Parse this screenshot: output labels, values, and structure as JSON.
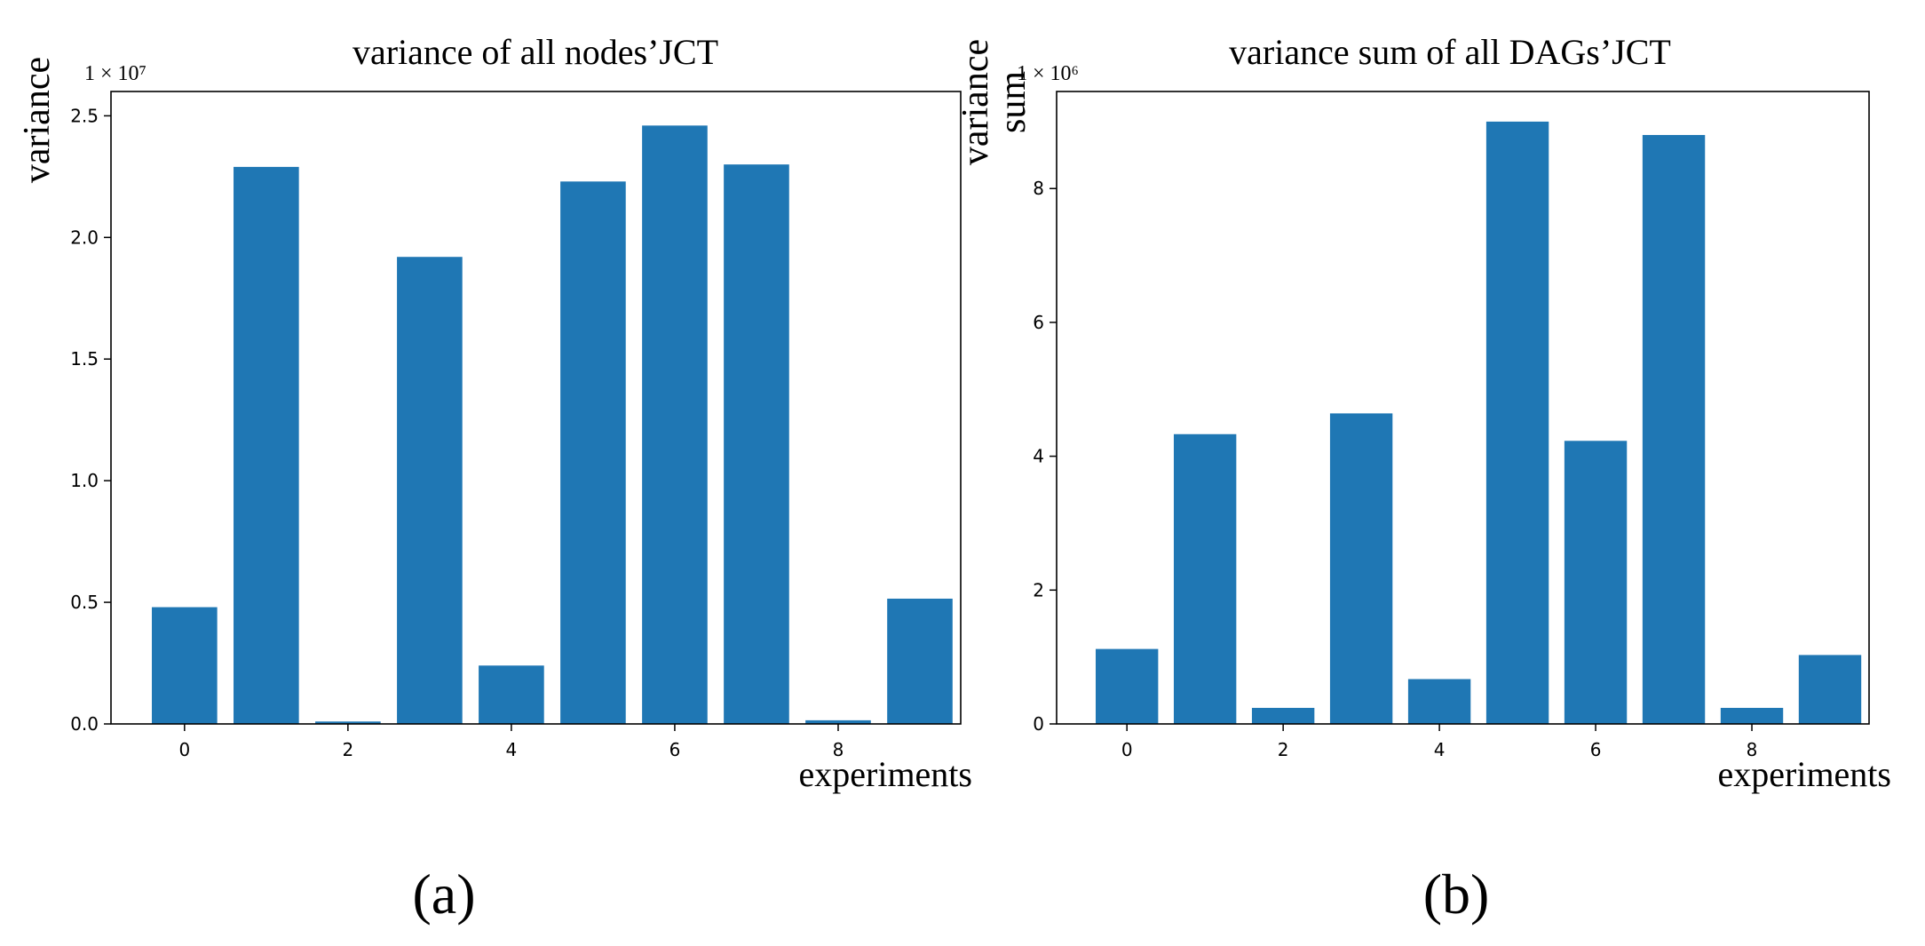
{
  "figure": {
    "colors": {
      "bar": "#1f77b4",
      "axis": "#000000",
      "background": "#ffffff"
    }
  },
  "chart_data": [
    {
      "type": "bar",
      "panel_label": "(a)",
      "title": "variance of all nodes’JCT",
      "xlabel": "experiments",
      "ylabel": "variance",
      "offset_text": "1 × 10⁷",
      "scale": 10000000,
      "categories": [
        0,
        1,
        2,
        3,
        4,
        5,
        6,
        7,
        8,
        9
      ],
      "values": [
        4800000,
        22900000,
        100000,
        19200000,
        2400000,
        22300000,
        24600000,
        23000000,
        150000,
        5150000
      ],
      "xlim": [
        -0.9,
        9.5
      ],
      "ylim": [
        0,
        2.6
      ],
      "xticks": [
        0,
        2,
        4,
        6,
        8
      ],
      "xtick_labels": [
        "0",
        "2",
        "4",
        "6",
        "8"
      ],
      "yticks": [
        0,
        0.5,
        1.0,
        1.5,
        2.0,
        2.5
      ],
      "ytick_labels": [
        "0.0",
        "0.5",
        "1.0",
        "1.5",
        "2.0",
        "2.5"
      ],
      "grid": false
    },
    {
      "type": "bar",
      "panel_label": "(b)",
      "title": "variance sum of all DAGs’JCT",
      "xlabel": "experiments",
      "ylabel": [
        "variance",
        "sum"
      ],
      "offset_text": "1 × 10⁶",
      "scale": 1000000,
      "categories": [
        0,
        1,
        2,
        3,
        4,
        5,
        6,
        7,
        8,
        9
      ],
      "values": [
        1120000,
        4330000,
        240000,
        4640000,
        670000,
        9000000,
        4230000,
        8800000,
        240000,
        1030000
      ],
      "xlim": [
        -0.9,
        9.5
      ],
      "ylim": [
        0,
        9.45
      ],
      "xticks": [
        0,
        2,
        4,
        6,
        8
      ],
      "xtick_labels": [
        "0",
        "2",
        "4",
        "6",
        "8"
      ],
      "yticks": [
        0,
        2,
        4,
        6,
        8
      ],
      "ytick_labels": [
        "0",
        "2",
        "4",
        "6",
        "8"
      ],
      "grid": false
    }
  ]
}
